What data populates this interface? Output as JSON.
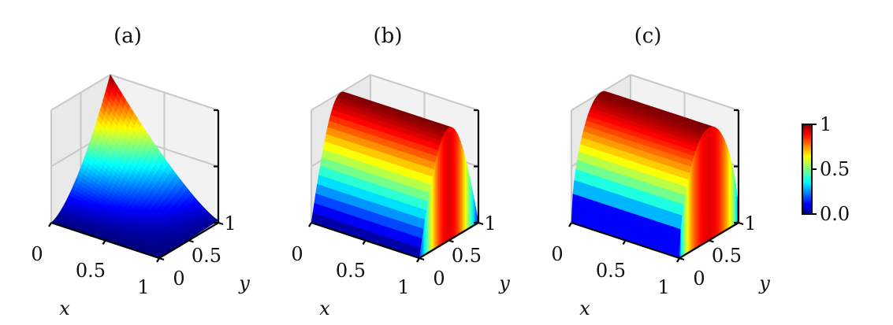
{
  "chart_data": [
    {
      "type": "surface",
      "panel_label": "(a)",
      "xlabel": "x",
      "ylabel": "y",
      "x_ticks": [
        "0",
        "0.5",
        "1"
      ],
      "y_ticks": [
        "0",
        "0.5",
        "1"
      ],
      "xlim": [
        0,
        1
      ],
      "ylim": [
        0,
        1
      ],
      "zlim": [
        0,
        1
      ],
      "grid": true,
      "colormap": "jet",
      "profile_y": [
        0.0,
        0.17,
        0.33,
        0.5,
        0.67,
        0.83,
        1.0
      ],
      "peak_z": 1.0,
      "peak_location": {
        "x": 0,
        "y": 1
      }
    },
    {
      "type": "surface",
      "panel_label": "(b)",
      "xlabel": "x",
      "ylabel": "y",
      "x_ticks": [
        "0",
        "0.5",
        "1"
      ],
      "y_ticks": [
        "0",
        "0.5",
        "1"
      ],
      "xlim": [
        0,
        1
      ],
      "ylim": [
        0,
        1
      ],
      "zlim": [
        0,
        1
      ],
      "grid": true,
      "colormap": "jet",
      "profile_y": [
        0.0,
        0.1,
        0.2,
        0.3,
        0.4,
        0.5,
        0.6,
        0.7,
        0.8,
        0.9,
        1.0
      ],
      "peak_z": 1.0
    },
    {
      "type": "surface",
      "panel_label": "(c)",
      "xlabel": "x",
      "ylabel": "y",
      "x_ticks": [
        "0",
        "0.5",
        "1"
      ],
      "y_ticks": [
        "0",
        "0.5",
        "1"
      ],
      "xlim": [
        0,
        1
      ],
      "ylim": [
        0,
        1
      ],
      "zlim": [
        0,
        1
      ],
      "grid": true,
      "colormap": "jet",
      "profile_y": [
        0.0,
        0.1,
        0.2,
        0.3,
        0.4,
        0.5,
        0.6,
        0.7,
        0.8,
        0.9,
        1.0
      ],
      "peak_z": 1.0
    }
  ],
  "colorbar": {
    "colormap": "jet",
    "range": [
      0,
      1
    ],
    "tick_labels": [
      "0.0",
      "0.5",
      "1"
    ],
    "tick_values": [
      0.0,
      0.5,
      1.0
    ]
  }
}
